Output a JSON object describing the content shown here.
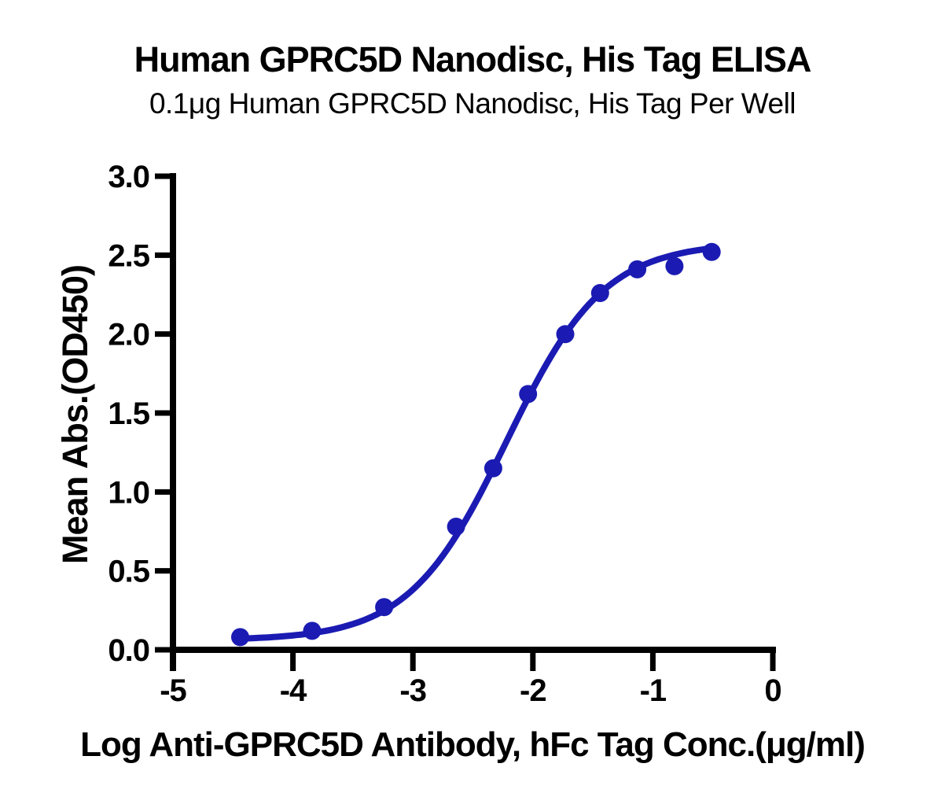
{
  "chart_data": {
    "type": "scatter",
    "title": "Human GPRC5D Nanodisc, His Tag ELISA",
    "subtitle": "0.1μg Human GPRC5D Nanodisc, His Tag Per Well",
    "xlabel": "Log Anti-GPRC5D Antibody, hFc Tag Conc.(μg/ml)",
    "ylabel": "Mean Abs.(OD450)",
    "xlim": [
      -5,
      0
    ],
    "ylim": [
      0,
      3
    ],
    "x_tick_values": [
      -5,
      -4,
      -3,
      -2,
      -1,
      0
    ],
    "x_tick_labels": [
      "-5",
      "-4",
      "-3",
      "-2",
      "-1",
      "0"
    ],
    "y_tick_values": [
      0.0,
      0.5,
      1.0,
      1.5,
      2.0,
      2.5,
      3.0
    ],
    "y_tick_labels": [
      "0.0",
      "0.5",
      "1.0",
      "1.5",
      "2.0",
      "2.5",
      "3.0"
    ],
    "points": [
      {
        "x": -4.44,
        "y": 0.08
      },
      {
        "x": -3.84,
        "y": 0.12
      },
      {
        "x": -3.24,
        "y": 0.27
      },
      {
        "x": -2.64,
        "y": 0.78
      },
      {
        "x": -2.33,
        "y": 1.15
      },
      {
        "x": -2.04,
        "y": 1.62
      },
      {
        "x": -1.73,
        "y": 2.0
      },
      {
        "x": -1.44,
        "y": 2.26
      },
      {
        "x": -1.13,
        "y": 2.41
      },
      {
        "x": -0.82,
        "y": 2.43
      },
      {
        "x": -0.51,
        "y": 2.52
      }
    ],
    "fit_curve_4pl": {
      "bottom": 0.06,
      "top": 2.58,
      "log_ec50": -2.22,
      "hill": 1.07
    },
    "series_color": "#1B1BB3",
    "axis_color": "#000000",
    "grid": false,
    "legend": null
  }
}
